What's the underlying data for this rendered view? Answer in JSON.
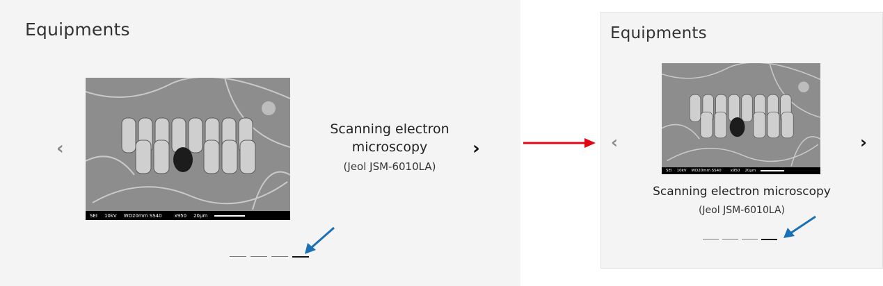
{
  "left": {
    "title": "Equipments",
    "caption_title_line1": "Scanning electron",
    "caption_title_line2": "microscopy",
    "caption_model": "(Jeol JSM-6010LA)",
    "image_meta": {
      "mode": "SEI",
      "kv": "10kV",
      "wd": "WD20mm SS40",
      "mag": "x950",
      "scale": "20μm"
    },
    "indicators": {
      "count": 4,
      "active_index": 3
    }
  },
  "right": {
    "title": "Equipments",
    "caption_title": "Scanning electron microscopy",
    "caption_model": "(Jeol JSM-6010LA)",
    "image_meta": {
      "mode": "SEI",
      "kv": "10kV",
      "wd": "WD20mm SS40",
      "mag": "x950",
      "scale": "20μm"
    },
    "indicators": {
      "count": 4,
      "active_index": 3
    }
  },
  "icons": {
    "prev": "chevron-left-icon",
    "next": "chevron-right-icon"
  },
  "colors": {
    "transition_arrow": "#e30613",
    "annotation_arrow": "#1a6fb5"
  }
}
